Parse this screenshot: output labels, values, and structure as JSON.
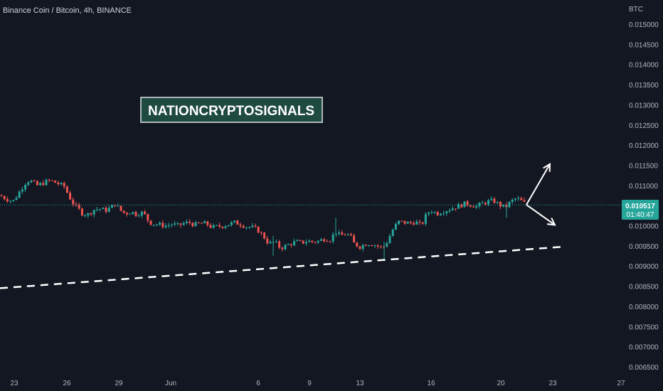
{
  "header": {
    "title": "Binance Coin / Bitcoin, 4h, BINANCE"
  },
  "banner": {
    "text": "NATIONCRYPTOSIGNALS"
  },
  "price_label": {
    "price": "0.010517",
    "countdown": "01:40:47"
  },
  "colors": {
    "background": "#131722",
    "up": "#26a69a",
    "down": "#ef5350",
    "label_bg": "#26a69a",
    "banner_bg": "#1f4a40"
  },
  "chart_data": {
    "type": "candlestick",
    "title": "Binance Coin / Bitcoin, 4h, BINANCE",
    "ylabel": "BTC",
    "ylim": [
      0.0063,
      0.0155
    ],
    "y_ticks": [
      "0.015000",
      "0.014500",
      "0.014000",
      "0.013500",
      "0.013000",
      "0.012500",
      "0.012000",
      "0.011500",
      "0.011000",
      "0.010500",
      "0.010000",
      "0.009500",
      "0.009000",
      "0.008500",
      "0.008000",
      "0.007500",
      "0.007000",
      "0.006500"
    ],
    "x_ticks": [
      "23",
      "26",
      "29",
      "Jun",
      "6",
      "9",
      "13",
      "16",
      "20",
      "23",
      "27"
    ],
    "last_price": 0.010517,
    "close_path": [
      [
        0,
        0.01075
      ],
      [
        10,
        0.01066
      ],
      [
        18,
        0.0106
      ],
      [
        24,
        0.01075
      ],
      [
        30,
        0.01092
      ],
      [
        38,
        0.01112
      ],
      [
        44,
        0.0111
      ],
      [
        52,
        0.011
      ],
      [
        60,
        0.01105
      ],
      [
        68,
        0.01112
      ],
      [
        74,
        0.0111
      ],
      [
        82,
        0.01104
      ],
      [
        90,
        0.01098
      ],
      [
        98,
        0.0107
      ],
      [
        104,
        0.01052
      ],
      [
        110,
        0.01042
      ],
      [
        116,
        0.0103
      ],
      [
        124,
        0.01028
      ],
      [
        132,
        0.0104
      ],
      [
        140,
        0.01042
      ],
      [
        148,
        0.01038
      ],
      [
        156,
        0.01045
      ],
      [
        162,
        0.01055
      ],
      [
        168,
        0.0104
      ],
      [
        176,
        0.0103
      ],
      [
        184,
        0.01035
      ],
      [
        192,
        0.01028
      ],
      [
        198,
        0.01034
      ],
      [
        204,
        0.01026
      ],
      [
        210,
        0.01008
      ],
      [
        218,
        0.01004
      ],
      [
        226,
        0.01002
      ],
      [
        234,
        0.01
      ],
      [
        242,
        0.01004
      ],
      [
        250,
        0.01
      ],
      [
        258,
        0.01006
      ],
      [
        266,
        0.01008
      ],
      [
        274,
        0.01002
      ],
      [
        282,
        0.01006
      ],
      [
        290,
        0.01005
      ],
      [
        298,
        0.00996
      ],
      [
        306,
        0.00998
      ],
      [
        314,
        0.01
      ],
      [
        322,
        0.01004
      ],
      [
        330,
        0.01008
      ],
      [
        338,
        0.01004
      ],
      [
        346,
        0.00998
      ],
      [
        354,
        0.00996
      ],
      [
        362,
        0.0099
      ],
      [
        370,
        0.00975
      ],
      [
        378,
        0.00955
      ],
      [
        386,
        0.0096
      ],
      [
        394,
        0.00945
      ],
      [
        400,
        0.00948
      ],
      [
        408,
        0.00955
      ],
      [
        416,
        0.0096
      ],
      [
        424,
        0.00958
      ],
      [
        432,
        0.00962
      ],
      [
        440,
        0.0096
      ],
      [
        448,
        0.00962
      ],
      [
        456,
        0.00968
      ],
      [
        464,
        0.00966
      ],
      [
        472,
        0.00985
      ],
      [
        478,
        0.00975
      ],
      [
        486,
        0.0098
      ],
      [
        492,
        0.00975
      ],
      [
        498,
        0.00955
      ],
      [
        506,
        0.00948
      ],
      [
        514,
        0.00955
      ],
      [
        522,
        0.00956
      ],
      [
        530,
        0.0095
      ],
      [
        538,
        0.00945
      ],
      [
        544,
        0.0096
      ],
      [
        552,
        0.0099
      ],
      [
        560,
        0.0101
      ],
      [
        568,
        0.01008
      ],
      [
        576,
        0.01006
      ],
      [
        584,
        0.0101
      ],
      [
        592,
        0.01
      ],
      [
        600,
        0.0103
      ],
      [
        606,
        0.01038
      ],
      [
        614,
        0.0103
      ],
      [
        622,
        0.01036
      ],
      [
        630,
        0.0104
      ],
      [
        638,
        0.01045
      ],
      [
        646,
        0.0105
      ],
      [
        654,
        0.01055
      ],
      [
        662,
        0.01052
      ],
      [
        670,
        0.01048
      ],
      [
        678,
        0.01055
      ],
      [
        686,
        0.0106
      ],
      [
        694,
        0.01062
      ],
      [
        702,
        0.01052
      ],
      [
        710,
        0.01045
      ],
      [
        718,
        0.0106
      ],
      [
        726,
        0.01068
      ],
      [
        734,
        0.0106
      ],
      [
        740,
        0.01052
      ]
    ],
    "support_line": [
      [
        0,
        0.00845
      ],
      [
        792,
        0.00948
      ]
    ],
    "scenario_arrows": [
      {
        "direction": "up",
        "from": [
          740,
          0.01052
        ],
        "to": [
          773,
          0.01153
        ]
      },
      {
        "direction": "down",
        "from": [
          740,
          0.01052
        ],
        "to": [
          780,
          0.01002
        ]
      }
    ],
    "grid": false,
    "legend": "none"
  }
}
